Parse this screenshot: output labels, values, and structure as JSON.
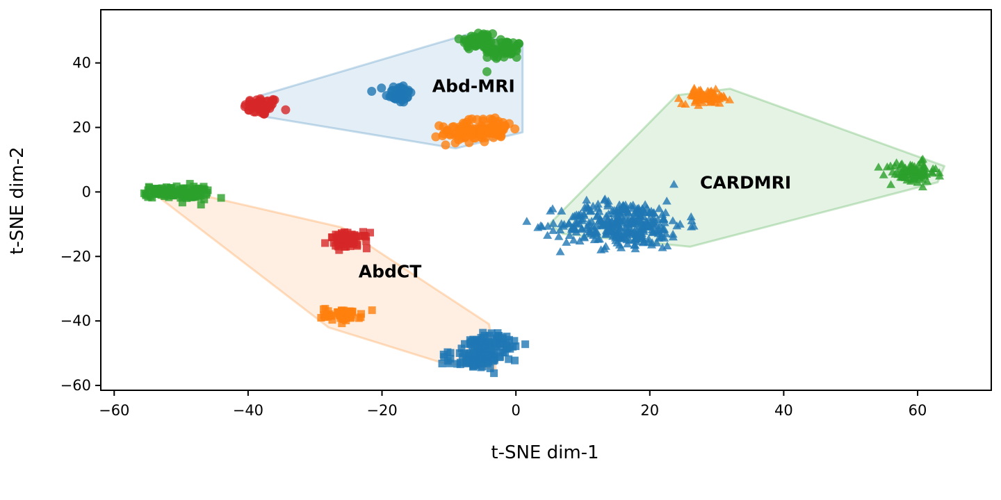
{
  "chart_data": {
    "type": "scatter",
    "xlabel": "t-SNE dim-1",
    "ylabel": "t-SNE dim-2",
    "xlim": [
      -62,
      71
    ],
    "ylim": [
      -61.5,
      56.5
    ],
    "xticks": [
      -60,
      -40,
      -20,
      0,
      20,
      40,
      60
    ],
    "yticks": [
      -60,
      -40,
      -20,
      0,
      20,
      40
    ],
    "xtick_labels": [
      "−60",
      "−40",
      "−20",
      "0",
      "20",
      "40",
      "60"
    ],
    "ytick_labels": [
      "−60",
      "−40",
      "−20",
      "0",
      "20",
      "40"
    ],
    "grid": false,
    "colors": {
      "blue": "#1f77b4",
      "orange": "#ff7f0e",
      "green": "#2ca02c",
      "red": "#d62728"
    },
    "domains": [
      {
        "label": "Abd-MRI",
        "label_pos": [
          -12.5,
          31
        ],
        "marker": "circle",
        "hull_color": "#1f77b4",
        "hull": [
          [
            -39.5,
            27
          ],
          [
            -38,
            30
          ],
          [
            -7,
            49
          ],
          [
            1,
            46
          ],
          [
            1,
            18.5
          ],
          [
            -9,
            13.5
          ],
          [
            -38,
            23.5
          ]
        ],
        "clusters": [
          {
            "color": "red",
            "cx": -38,
            "cy": 26.5,
            "sx": 1.3,
            "sy": 1.4,
            "n": 55
          },
          {
            "color": "blue",
            "cx": -17.5,
            "cy": 30.5,
            "sx": 1.0,
            "sy": 1.5,
            "n": 50
          },
          {
            "color": "green",
            "cx": -5.5,
            "cy": 47,
            "sx": 1.4,
            "sy": 1.5,
            "n": 50
          },
          {
            "color": "green",
            "cx": -2,
            "cy": 44,
            "sx": 1.5,
            "sy": 1.6,
            "n": 55
          },
          {
            "color": "orange",
            "cx": -8,
            "cy": 18.5,
            "sx": 1.6,
            "sy": 1.7,
            "n": 60
          },
          {
            "color": "orange",
            "cx": -3.5,
            "cy": 19.5,
            "sx": 1.6,
            "sy": 1.7,
            "n": 60
          }
        ]
      },
      {
        "label": "AbdCT",
        "label_pos": [
          -23.5,
          -26.5
        ],
        "marker": "square",
        "hull_color": "#ff7f0e",
        "hull": [
          [
            -55,
            1
          ],
          [
            -47,
            -1
          ],
          [
            -26,
            -11
          ],
          [
            -4,
            -41
          ],
          [
            -3,
            -55
          ],
          [
            -11,
            -53
          ],
          [
            -28,
            -42
          ]
        ],
        "clusters": [
          {
            "color": "green",
            "cx": -53,
            "cy": 0,
            "sx": 1.2,
            "sy": 0.9,
            "n": 50
          },
          {
            "color": "green",
            "cx": -48.5,
            "cy": -0.5,
            "sx": 1.6,
            "sy": 1.2,
            "n": 55
          },
          {
            "color": "red",
            "cx": -25,
            "cy": -15,
            "sx": 1.5,
            "sy": 1.2,
            "n": 65
          },
          {
            "color": "orange",
            "cx": -26,
            "cy": -38,
            "sx": 1.5,
            "sy": 1.0,
            "n": 50
          },
          {
            "color": "blue",
            "cx": -4,
            "cy": -47,
            "sx": 1.8,
            "sy": 1.6,
            "n": 80
          },
          {
            "color": "blue",
            "cx": -6,
            "cy": -52,
            "sx": 2.0,
            "sy": 1.4,
            "n": 80
          }
        ]
      },
      {
        "label": "CARDMRI",
        "label_pos": [
          27.5,
          1
        ],
        "marker": "triangle",
        "hull_color": "#2ca02c",
        "hull": [
          [
            5,
            -10
          ],
          [
            24,
            30
          ],
          [
            32,
            32
          ],
          [
            64,
            8
          ],
          [
            63,
            3
          ],
          [
            26,
            -17
          ],
          [
            7,
            -13
          ]
        ],
        "clusters": [
          {
            "color": "orange",
            "cx": 28.5,
            "cy": 29.5,
            "sx": 1.8,
            "sy": 1.1,
            "n": 70
          },
          {
            "color": "green",
            "cx": 59,
            "cy": 6,
            "sx": 1.9,
            "sy": 1.7,
            "n": 85
          },
          {
            "color": "blue",
            "cx": 16,
            "cy": -10,
            "sx": 4.6,
            "sy": 3.6,
            "n": 330
          }
        ]
      }
    ]
  }
}
